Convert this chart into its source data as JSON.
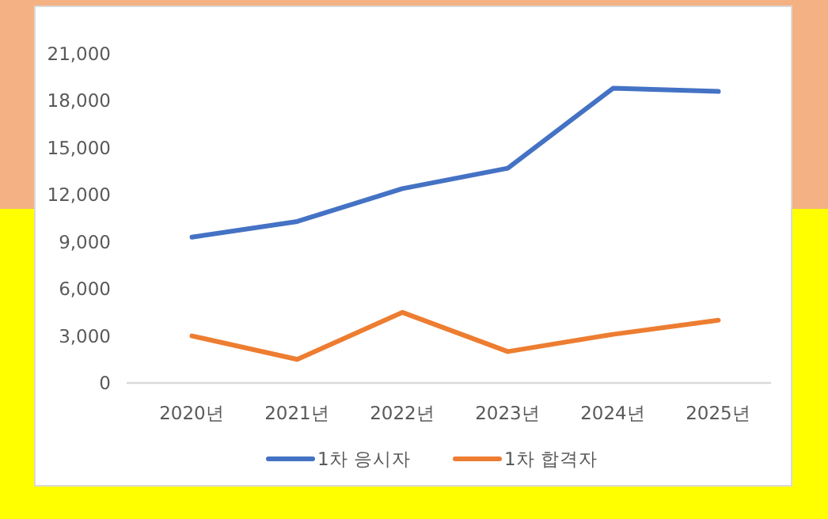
{
  "chart_data": {
    "type": "line",
    "categories": [
      "2020년",
      "2021년",
      "2022년",
      "2023년",
      "2024년",
      "2025년"
    ],
    "series": [
      {
        "name": "1차 응시자",
        "color": "#4472c4",
        "values": [
          9300,
          10300,
          12400,
          13700,
          18800,
          18600
        ]
      },
      {
        "name": "1차 합격자",
        "color": "#ed7d31",
        "values": [
          3000,
          1500,
          4500,
          2000,
          3100,
          4000
        ]
      }
    ],
    "ylim": [
      0,
      21000
    ],
    "yticks": [
      {
        "value": 0,
        "label": "0"
      },
      {
        "value": 3000,
        "label": "3,000"
      },
      {
        "value": 6000,
        "label": "6,000"
      },
      {
        "value": 9000,
        "label": "9,000"
      },
      {
        "value": 12000,
        "label": "12,000"
      },
      {
        "value": 15000,
        "label": "15,000"
      },
      {
        "value": 18000,
        "label": "18,000"
      },
      {
        "value": 21000,
        "label": "21,000"
      }
    ],
    "grid": false,
    "legend": "bottom",
    "marker": "none",
    "line_style": "solid"
  }
}
